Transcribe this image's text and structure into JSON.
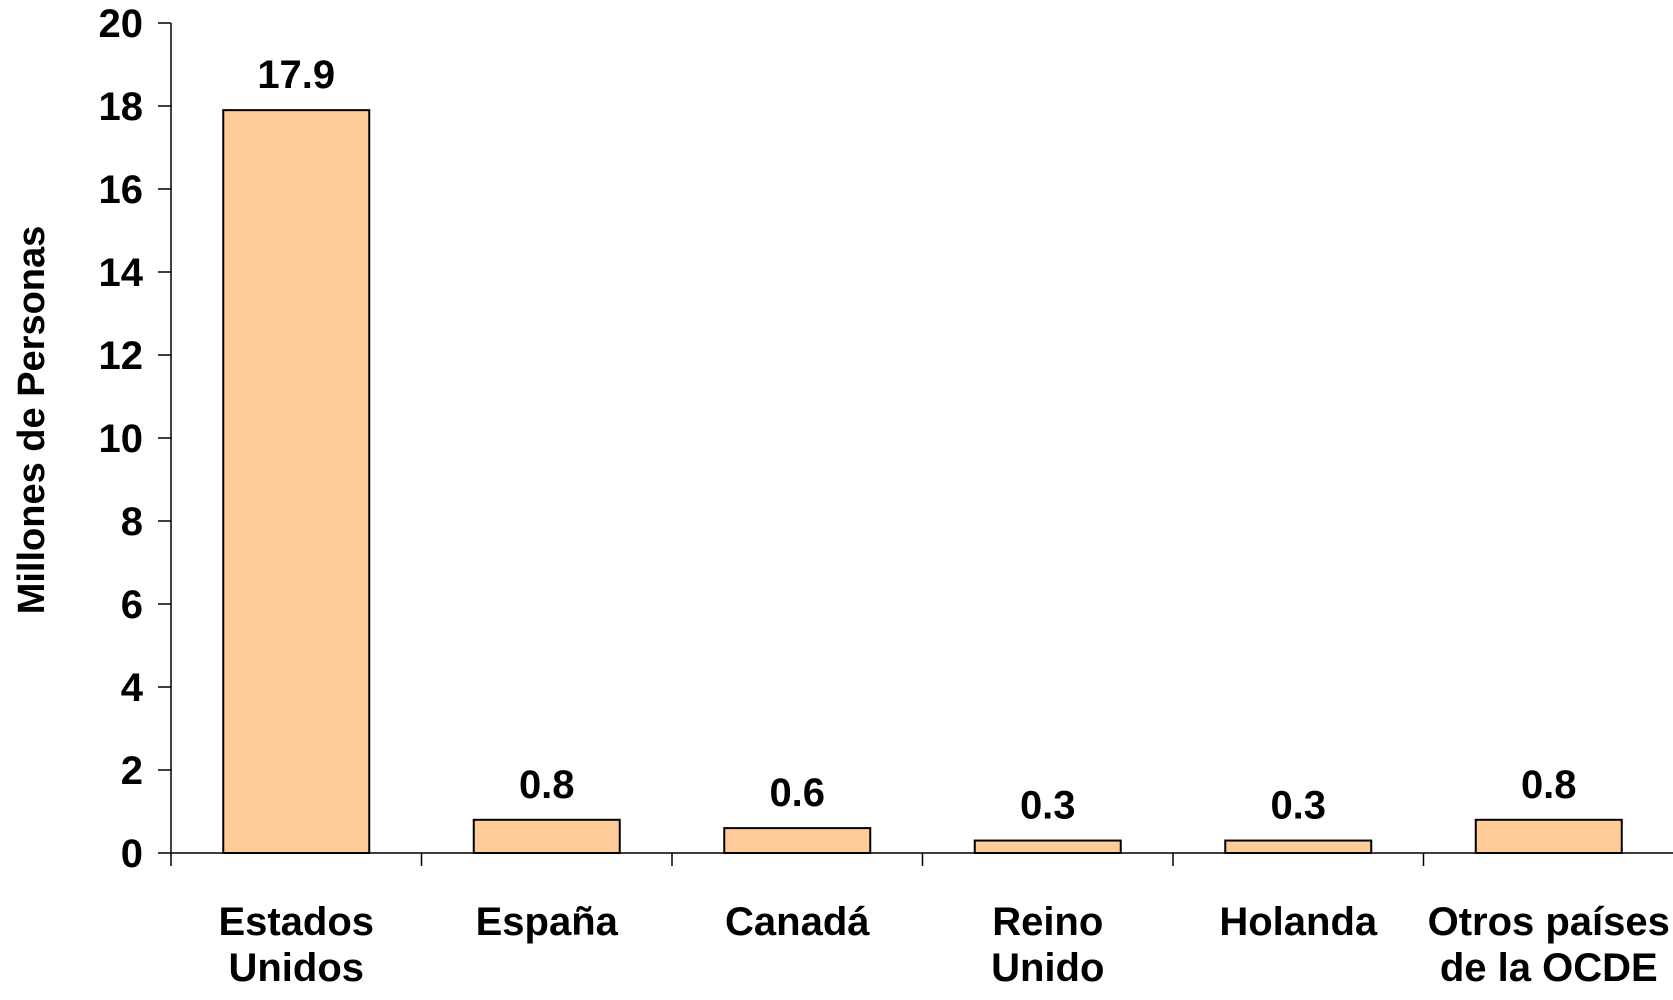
{
  "chart_data": {
    "type": "bar",
    "title": "",
    "xlabel": "",
    "ylabel": "Millones de Personas",
    "ylim": [
      0,
      20
    ],
    "yticks": [
      0,
      2,
      4,
      6,
      8,
      10,
      12,
      14,
      16,
      18,
      20
    ],
    "categories": [
      [
        "Estados",
        "Unidos"
      ],
      [
        "España"
      ],
      [
        "Canadá"
      ],
      [
        "Reino",
        "Unido"
      ],
      [
        "Holanda"
      ],
      [
        "Otros países",
        "de la OCDE"
      ]
    ],
    "values": [
      17.9,
      0.8,
      0.6,
      0.3,
      0.3,
      0.8
    ],
    "data_labels": [
      "17.9",
      "0.8",
      "0.6",
      "0.3",
      "0.3",
      "0.8"
    ],
    "grid": false,
    "legend": "none",
    "colors": {
      "bar_fill": "#FFCC99",
      "bar_stroke": "#000000",
      "axis": "#000000"
    }
  }
}
